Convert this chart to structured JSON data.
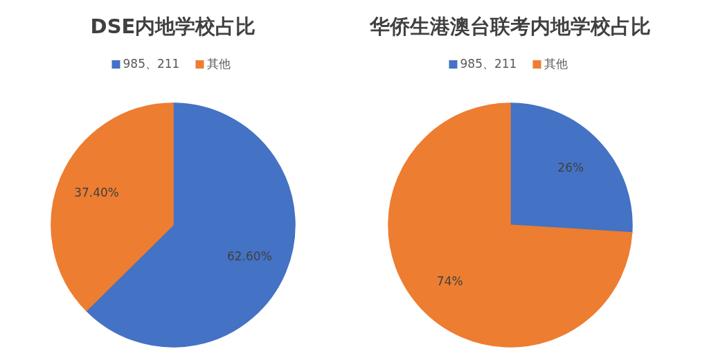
{
  "chart_data": [
    {
      "type": "pie",
      "title": "DSE内地学校占比",
      "categories": [
        "985、211",
        "其他"
      ],
      "values": [
        62.6,
        37.4
      ],
      "colors": [
        "#4472c4",
        "#ed7d31"
      ],
      "value_labels": [
        "62.60%",
        "37.40%"
      ],
      "legend": "top"
    },
    {
      "type": "pie",
      "title": "华侨生港澳台联考内地学校占比",
      "categories": [
        "985、211",
        "其他"
      ],
      "values": [
        26,
        74
      ],
      "colors": [
        "#4472c4",
        "#ed7d31"
      ],
      "value_labels": [
        "26%",
        "74%"
      ],
      "legend": "top"
    }
  ]
}
